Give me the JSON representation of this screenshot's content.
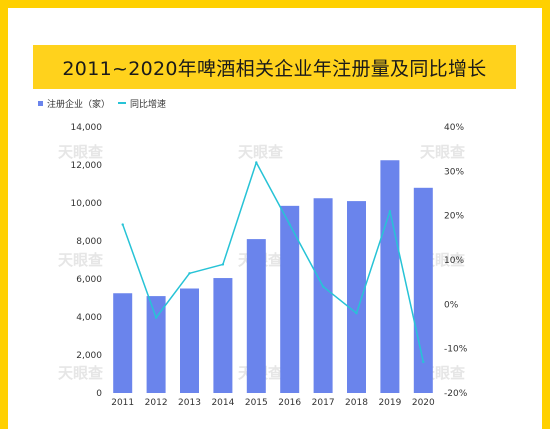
{
  "title": "2011~2020年啤酒相关企业年注册量及同比增长",
  "watermark": "天眼查",
  "colors": {
    "frame": "#FFD000",
    "banner": "#FFD21C",
    "bar": "#6A84EC",
    "line": "#27C3D6"
  },
  "chart_data": {
    "type": "bar",
    "categories": [
      "2011",
      "2012",
      "2013",
      "2014",
      "2015",
      "2016",
      "2017",
      "2018",
      "2019",
      "2020"
    ],
    "series": [
      {
        "name": "注册企业（家）",
        "type": "bar",
        "axis": "left",
        "values": [
          5250,
          5100,
          5500,
          6050,
          8100,
          9850,
          10250,
          10100,
          12250,
          10800
        ]
      },
      {
        "name": "同比增速",
        "type": "line",
        "axis": "right",
        "unit": "%",
        "values": [
          18,
          -3,
          7,
          9,
          32,
          18,
          4,
          -2,
          21,
          -13
        ]
      }
    ],
    "y_left": {
      "min": 0,
      "max": 14000,
      "ticks": [
        "0",
        "2,000",
        "4,000",
        "6,000",
        "8,000",
        "10,000",
        "12,000",
        "14,000"
      ]
    },
    "y_right": {
      "min": -20,
      "max": 40,
      "ticks": [
        "-20%",
        "-10%",
        "0%",
        "10%",
        "20%",
        "30%",
        "40%"
      ]
    },
    "legend_position": "top-left",
    "grid": false
  }
}
